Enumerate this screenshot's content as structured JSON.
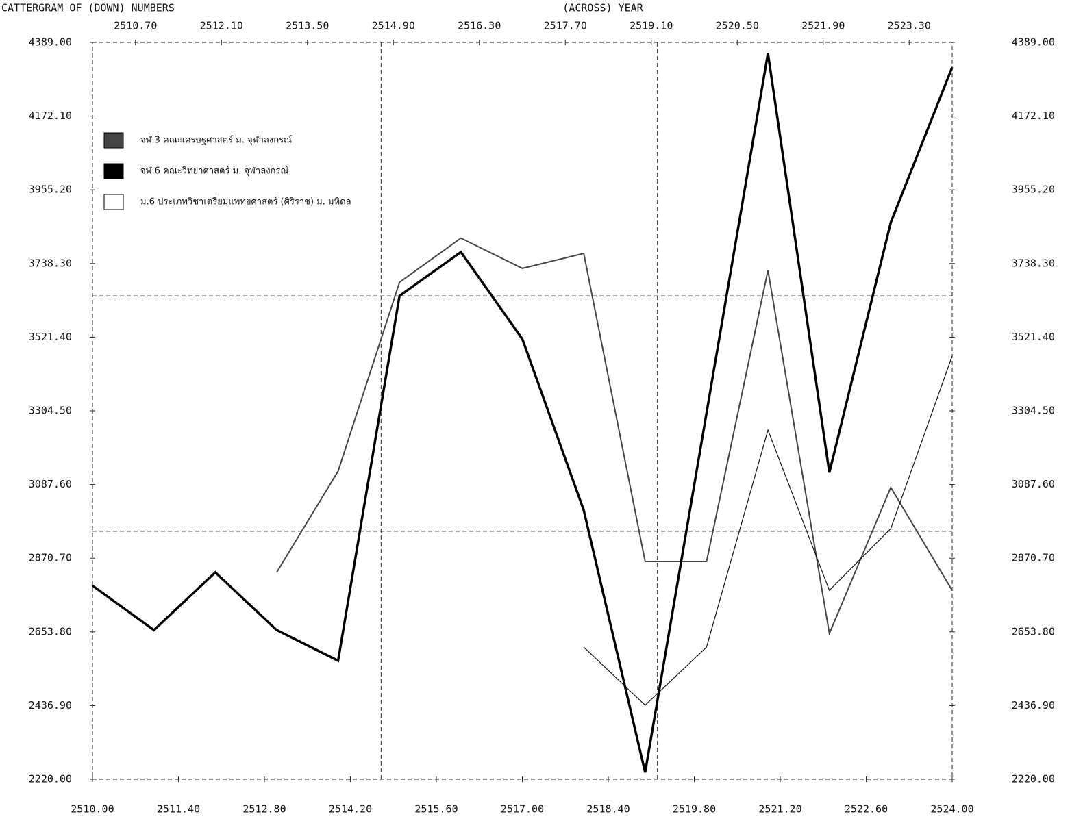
{
  "chart_data": {
    "type": "line",
    "title": "CATTERGRAM OF  (DOWN) NUMBERS",
    "x_label": "(ACROSS) YEAR",
    "xlim": [
      2510,
      2524
    ],
    "ylim": [
      2220,
      4389
    ],
    "xticks": [
      {
        "value": 2510,
        "label": "2510.00"
      },
      {
        "value": 2511.4,
        "label": "2511.40"
      },
      {
        "value": 2512.8,
        "label": "2512.80"
      },
      {
        "value": 2514.2,
        "label": "2514.20"
      },
      {
        "value": 2515.6,
        "label": "2515.60"
      },
      {
        "value": 2517,
        "label": "2517.00"
      },
      {
        "value": 2518.4,
        "label": "2518.40"
      },
      {
        "value": 2519.8,
        "label": "2519.80"
      },
      {
        "value": 2521.2,
        "label": "2521.20"
      },
      {
        "value": 2522.6,
        "label": "2522.60"
      },
      {
        "value": 2524,
        "label": "2524.00"
      }
    ],
    "x2ticks": [
      {
        "value": 2510.7,
        "label": "2510.70"
      },
      {
        "value": 2512.1,
        "label": "2512.10"
      },
      {
        "value": 2513.5,
        "label": "2513.50"
      },
      {
        "value": 2514.9,
        "label": "2514.90"
      },
      {
        "value": 2516.3,
        "label": "2516.30"
      },
      {
        "value": 2517.7,
        "label": "2517.70"
      },
      {
        "value": 2519.1,
        "label": "2519.10"
      },
      {
        "value": 2520.5,
        "label": "2520.50"
      },
      {
        "value": 2521.9,
        "label": "2521.90"
      },
      {
        "value": 2523.3,
        "label": "2523.30"
      }
    ],
    "yticks": [
      {
        "value": 4389,
        "label": "4389.00"
      },
      {
        "value": 4172.1,
        "label": "4172.10"
      },
      {
        "value": 3955.2,
        "label": "3955.20"
      },
      {
        "value": 3738.3,
        "label": "3738.30"
      },
      {
        "value": 3521.4,
        "label": "3521.40"
      },
      {
        "value": 3304.5,
        "label": "3304.50"
      },
      {
        "value": 3087.6,
        "label": "3087.60"
      },
      {
        "value": 2870.7,
        "label": "2870.70"
      },
      {
        "value": 2653.8,
        "label": "2653.80"
      },
      {
        "value": 2436.9,
        "label": "2436.90"
      },
      {
        "value": 2220,
        "label": "2220.00"
      }
    ],
    "hlines": [
      3643,
      2950
    ],
    "vlines": [
      2514.7,
      2519.2
    ],
    "series": [
      {
        "name": "จฬ.3 คณะเศรษฐศาสตร์  ม. จุฬาลงกรณ์",
        "color": "#444444",
        "width": 2,
        "x": [
          2513,
          2514,
          2515,
          2516,
          2517,
          2518,
          2519,
          2520,
          2521,
          2522,
          2523,
          2524
        ],
        "values": [
          2829,
          3127,
          3683,
          3813,
          3724,
          3768,
          2861,
          2861,
          3718,
          2649,
          3079,
          2776
        ]
      },
      {
        "name": "จฬ.6 คณะวิทยาศาสตร์  ม. จุฬาลงกรณ์",
        "color": "#000000",
        "width": 3.5,
        "x": [
          2510,
          2511,
          2512,
          2513,
          2514,
          2515,
          2516,
          2517,
          2518,
          2519,
          2521,
          2522,
          2523,
          2524
        ],
        "values": [
          2790,
          2659,
          2829,
          2659,
          2569,
          3643,
          3772,
          3516,
          3012,
          2240,
          4357,
          3123,
          3859,
          4316
        ]
      },
      {
        "name": "ม.6 ประเภทวิชาเตรียมแพทยศาสตร์ (ศิริราช) ม. มหิดล",
        "color": "#ffffff",
        "width": 1.2,
        "x": [
          2518,
          2519,
          2520,
          2521,
          2522,
          2523,
          2524
        ],
        "values": [
          2609,
          2438,
          2609,
          3248,
          2776,
          2958,
          3466
        ]
      }
    ]
  }
}
